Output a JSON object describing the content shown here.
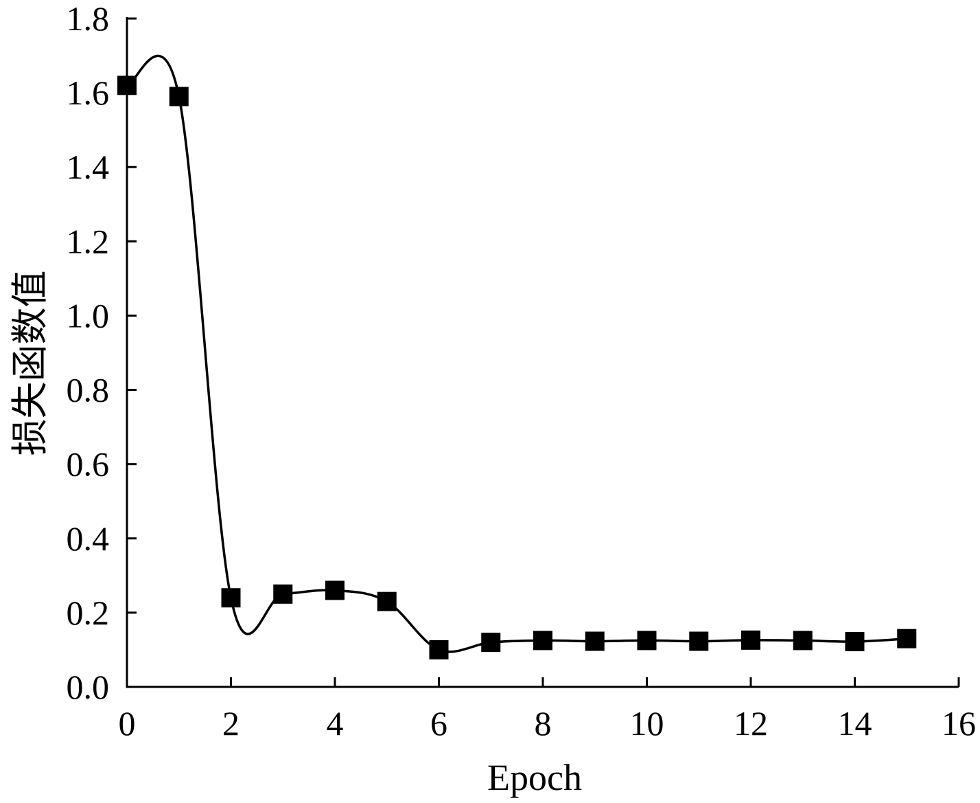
{
  "chart_data": {
    "type": "line",
    "title": "",
    "xlabel": "Epoch",
    "ylabel": "损失函数值",
    "xlim": [
      0,
      16
    ],
    "ylim": [
      0.0,
      1.8
    ],
    "xticks": [
      0,
      2,
      4,
      6,
      8,
      10,
      12,
      14,
      16
    ],
    "yticks": [
      0.0,
      0.2,
      0.4,
      0.6,
      0.8,
      1.0,
      1.2,
      1.4,
      1.6,
      1.8
    ],
    "xtick_labels": [
      "0",
      "2",
      "4",
      "6",
      "8",
      "10",
      "12",
      "14",
      "16"
    ],
    "ytick_labels": [
      "0.0",
      "0.2",
      "0.4",
      "0.6",
      "0.8",
      "1.0",
      "1.2",
      "1.4",
      "1.6",
      "1.8"
    ],
    "grid": false,
    "legend": "none",
    "marker": "square",
    "smooth": true,
    "series": [
      {
        "color": "#000000",
        "x": [
          0,
          1,
          2,
          3,
          4,
          5,
          6,
          7,
          8,
          9,
          10,
          11,
          12,
          13,
          14,
          15
        ],
        "y": [
          1.62,
          1.59,
          0.24,
          0.25,
          0.26,
          0.23,
          0.1,
          0.12,
          0.125,
          0.123,
          0.125,
          0.123,
          0.126,
          0.125,
          0.122,
          0.13
        ]
      }
    ]
  }
}
